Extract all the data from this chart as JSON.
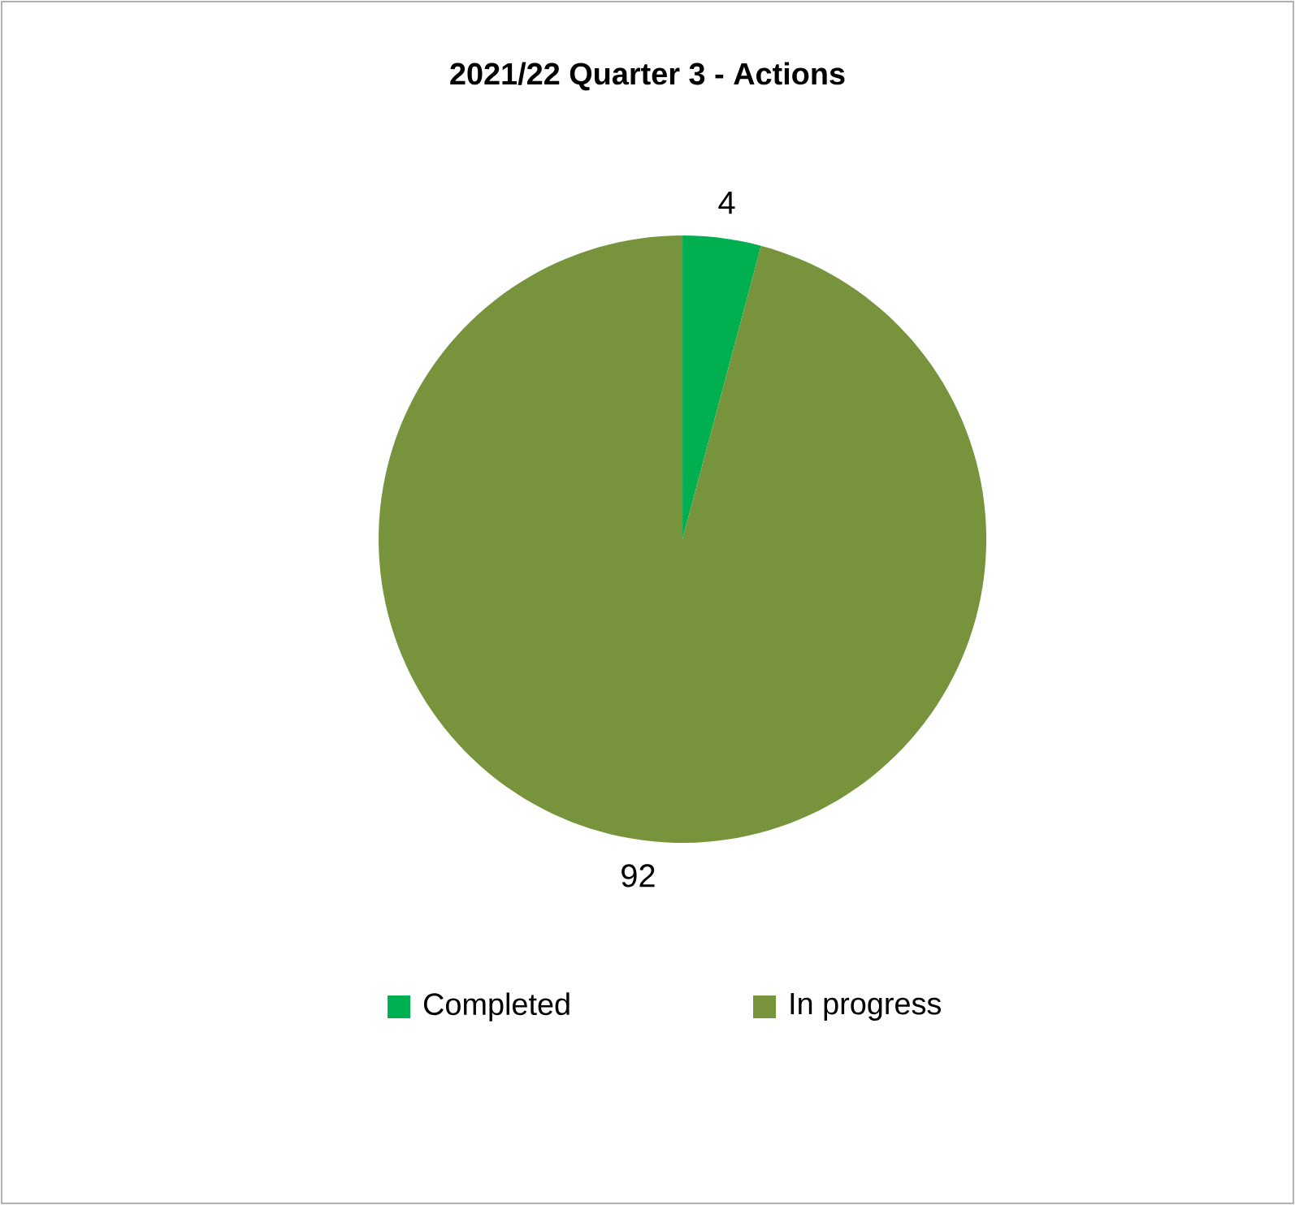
{
  "chart_data": {
    "type": "pie",
    "title": "2021/22  Quarter 3 - Actions",
    "categories": [
      "Completed",
      "In progress"
    ],
    "values": [
      4,
      92
    ],
    "colors": [
      "#00b050",
      "#77933c"
    ],
    "data_labels": true,
    "legend": "bottom"
  }
}
